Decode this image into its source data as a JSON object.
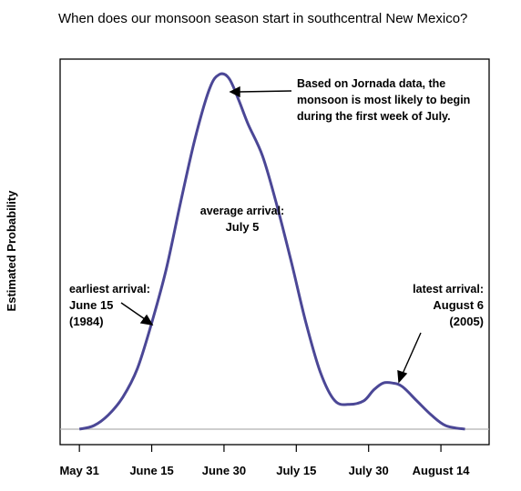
{
  "chart_data": {
    "type": "line",
    "title": "When does our monsoon season start in southcentral New Mexico?",
    "xlabel": "",
    "ylabel": "Estimated Probability",
    "x_ticks": [
      "May 31",
      "June 15",
      "June 30",
      "July 15",
      "July 30",
      "August 14"
    ],
    "xlim": [
      "May 27",
      "August 24"
    ],
    "ylim": [
      0,
      1
    ],
    "grid": false,
    "legend": "none",
    "line_color": "#4b4796",
    "baseline_color": "#b0b0b0",
    "series": [
      {
        "x": [
          "May 31",
          "June 3",
          "June 6",
          "June 9",
          "June 12",
          "June 15",
          "June 18",
          "June 21",
          "June 24",
          "June 27",
          "June 29",
          "July 1",
          "July 3",
          "July 5",
          "July 8",
          "July 11",
          "July 14",
          "July 17",
          "July 20",
          "July 23",
          "July 26",
          "July 29",
          "July 31",
          "August 2",
          "August 4",
          "August 6",
          "August 9",
          "August 12",
          "August 15",
          "August 19"
        ],
        "values": [
          0.0,
          0.01,
          0.04,
          0.09,
          0.17,
          0.3,
          0.45,
          0.64,
          0.82,
          0.96,
          1.0,
          0.99,
          0.93,
          0.86,
          0.77,
          0.63,
          0.47,
          0.3,
          0.16,
          0.08,
          0.07,
          0.08,
          0.11,
          0.13,
          0.13,
          0.12,
          0.08,
          0.04,
          0.01,
          0.0
        ]
      }
    ],
    "annotations": {
      "note_lines": [
        "Based on Jornada data, the",
        "monsoon is most likely to begin",
        "during the first week of July."
      ],
      "average_lines": [
        "average arrival:",
        "July 5"
      ],
      "earliest_lines": [
        "earliest arrival:",
        "June 15",
        "(1984)"
      ],
      "latest_lines": [
        "latest arrival:",
        "August 6",
        "(2005)"
      ]
    }
  }
}
